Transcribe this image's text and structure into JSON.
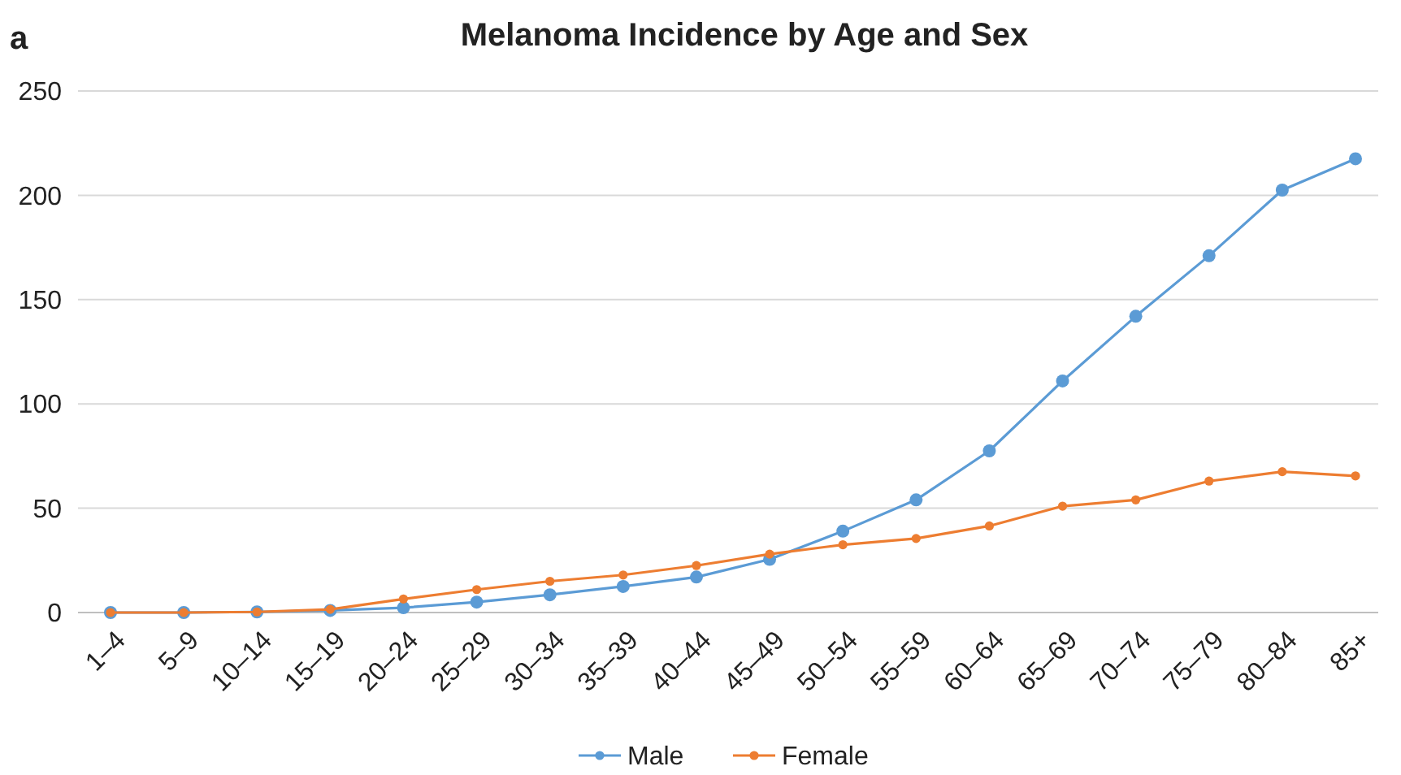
{
  "chart_data": {
    "type": "line",
    "title": "Melanoma Incidence by Age and Sex",
    "annotations": [
      "a"
    ],
    "categories": [
      "1–4",
      "5–9",
      "10–14",
      "15–19",
      "20–24",
      "25–29",
      "30–34",
      "35–39",
      "40–44",
      "45–49",
      "50–54",
      "55–59",
      "60–64",
      "65–69",
      "70–74",
      "75–79",
      "80–84",
      "85+"
    ],
    "series": [
      {
        "name": "Male",
        "color": "#5b9bd5",
        "values": [
          0,
          0,
          0.3,
          1,
          2.3,
          5,
          8.5,
          12.5,
          17,
          25.5,
          39,
          54,
          77.5,
          111,
          142,
          171,
          202.5,
          217.5
        ]
      },
      {
        "name": "Female",
        "color": "#ed7d31",
        "values": [
          0,
          0,
          0.3,
          1.5,
          6.5,
          11,
          15,
          18,
          22.5,
          28,
          32.5,
          35.5,
          41.5,
          51,
          54,
          63,
          67.5,
          65.5
        ]
      }
    ],
    "ylim": [
      0,
      250
    ],
    "yticks": [
      0,
      50,
      100,
      150,
      200,
      250
    ],
    "grid": "y",
    "legend": "bottom",
    "marker": "circle",
    "line_style": "solid"
  }
}
